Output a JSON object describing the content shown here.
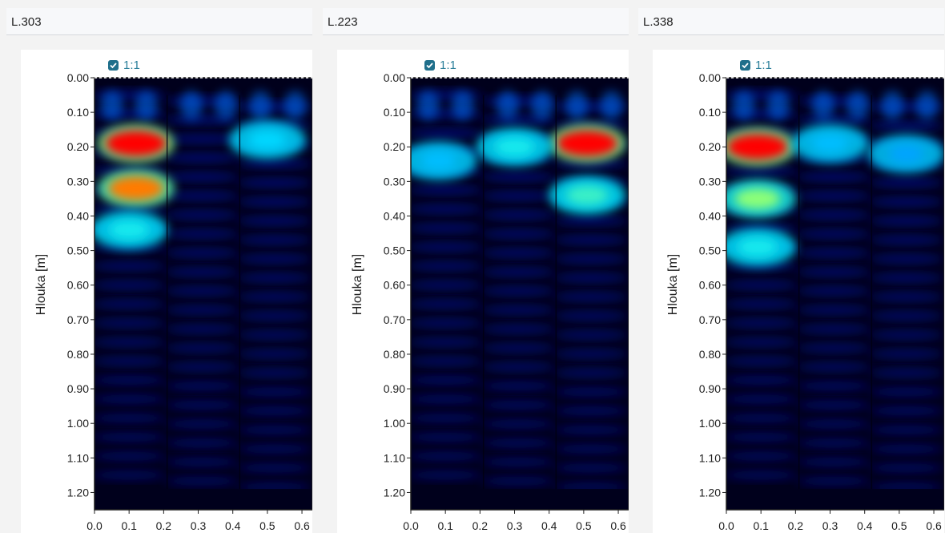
{
  "panels": [
    {
      "title": "L.303",
      "ratio_checkbox": {
        "label": "1:1",
        "checked": true
      },
      "chart_data": {
        "type": "heatmap",
        "ylabel": "Hlouka [m]",
        "yticks": [
          "0.00",
          "0.10",
          "0.20",
          "0.30",
          "0.40",
          "0.50",
          "0.60",
          "0.70",
          "0.80",
          "0.90",
          "1.00",
          "1.10",
          "1.20"
        ],
        "xticks": [
          "0.0",
          "0.1",
          "0.2",
          "0.3",
          "0.4",
          "0.5",
          "0.6"
        ],
        "xlim": [
          0,
          0.63
        ],
        "ylim": [
          0,
          1.25
        ],
        "hotspots": [
          {
            "x": 0.12,
            "y": 0.19,
            "intensity": 1.0
          },
          {
            "x": 0.12,
            "y": 0.32,
            "intensity": 0.85
          },
          {
            "x": 0.1,
            "y": 0.44,
            "intensity": 0.45
          },
          {
            "x": 0.5,
            "y": 0.18,
            "intensity": 0.4
          }
        ]
      }
    },
    {
      "title": "L.223",
      "ratio_checkbox": {
        "label": "1:1",
        "checked": true
      },
      "chart_data": {
        "type": "heatmap",
        "ylabel": "Hlouka [m]",
        "yticks": [
          "0.00",
          "0.10",
          "0.20",
          "0.30",
          "0.40",
          "0.50",
          "0.60",
          "0.70",
          "0.80",
          "0.90",
          "1.00",
          "1.10",
          "1.20"
        ],
        "xticks": [
          "0.0",
          "0.1",
          "0.2",
          "0.3",
          "0.4",
          "0.5",
          "0.6"
        ],
        "xlim": [
          0,
          0.63
        ],
        "ylim": [
          0,
          1.25
        ],
        "hotspots": [
          {
            "x": 0.51,
            "y": 0.19,
            "intensity": 1.0
          },
          {
            "x": 0.51,
            "y": 0.34,
            "intensity": 0.5
          },
          {
            "x": 0.3,
            "y": 0.2,
            "intensity": 0.45
          },
          {
            "x": 0.08,
            "y": 0.24,
            "intensity": 0.35
          }
        ]
      }
    },
    {
      "title": "L.338",
      "ratio_checkbox": {
        "label": "1:1",
        "checked": true
      },
      "chart_data": {
        "type": "heatmap",
        "ylabel": "Hlouka [m]",
        "yticks": [
          "0.00",
          "0.10",
          "0.20",
          "0.30",
          "0.40",
          "0.50",
          "0.60",
          "0.70",
          "0.80",
          "0.90",
          "1.00",
          "1.10",
          "1.20"
        ],
        "xticks": [
          "0.0",
          "0.1",
          "0.2",
          "0.3",
          "0.4",
          "0.5",
          "0.6"
        ],
        "xlim": [
          0,
          0.63
        ],
        "ylim": [
          0,
          1.25
        ],
        "hotspots": [
          {
            "x": 0.09,
            "y": 0.2,
            "intensity": 1.0
          },
          {
            "x": 0.09,
            "y": 0.35,
            "intensity": 0.6
          },
          {
            "x": 0.09,
            "y": 0.49,
            "intensity": 0.45
          },
          {
            "x": 0.3,
            "y": 0.19,
            "intensity": 0.35
          },
          {
            "x": 0.52,
            "y": 0.22,
            "intensity": 0.3
          }
        ]
      }
    }
  ]
}
